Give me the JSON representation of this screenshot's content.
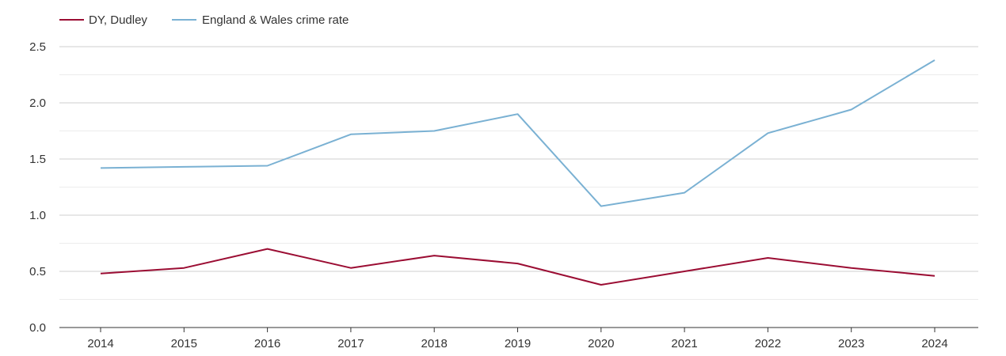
{
  "chart_data": {
    "type": "line",
    "title": "",
    "xlabel": "",
    "ylabel": "",
    "ylim": [
      0,
      2.5
    ],
    "grid": true,
    "legend_position": "top-left",
    "categories": [
      "2014",
      "2015",
      "2016",
      "2017",
      "2018",
      "2019",
      "2020",
      "2021",
      "2022",
      "2023",
      "2024"
    ],
    "yticks": [
      "0.0",
      "0.5",
      "1.0",
      "1.5",
      "2.0",
      "2.5"
    ],
    "series": [
      {
        "name": "DY, Dudley",
        "color": "#9b0d33",
        "values": [
          0.48,
          0.53,
          0.7,
          0.53,
          0.64,
          0.57,
          0.38,
          0.5,
          0.62,
          0.53,
          0.46
        ]
      },
      {
        "name": "England & Wales crime rate",
        "color": "#7ab1d3",
        "values": [
          1.42,
          1.43,
          1.44,
          1.72,
          1.75,
          1.9,
          1.08,
          1.2,
          1.73,
          1.94,
          2.38
        ]
      }
    ]
  }
}
